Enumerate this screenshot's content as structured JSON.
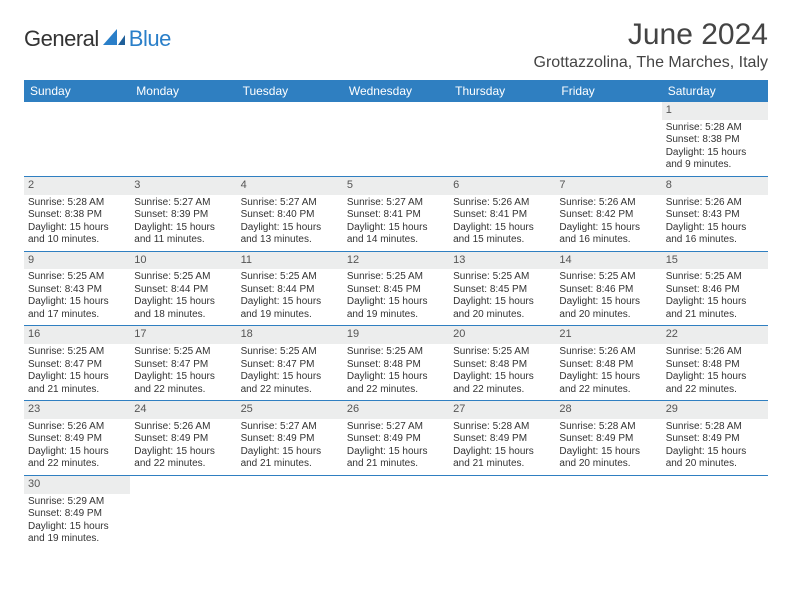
{
  "logo": {
    "part1": "General",
    "part2": "Blue"
  },
  "title": "June 2024",
  "location": "Grottazzolina, The Marches, Italy",
  "colors": {
    "header_bg": "#2f7fc1",
    "header_text": "#ffffff",
    "daynum_bg": "#eceded",
    "border": "#2f7fc1",
    "logo_accent": "#2a7fc9"
  },
  "weekdays": [
    "Sunday",
    "Monday",
    "Tuesday",
    "Wednesday",
    "Thursday",
    "Friday",
    "Saturday"
  ],
  "weeks": [
    [
      null,
      null,
      null,
      null,
      null,
      null,
      {
        "n": "1",
        "sunrise": "Sunrise: 5:28 AM",
        "sunset": "Sunset: 8:38 PM",
        "day1": "Daylight: 15 hours",
        "day2": "and 9 minutes."
      }
    ],
    [
      {
        "n": "2",
        "sunrise": "Sunrise: 5:28 AM",
        "sunset": "Sunset: 8:38 PM",
        "day1": "Daylight: 15 hours",
        "day2": "and 10 minutes."
      },
      {
        "n": "3",
        "sunrise": "Sunrise: 5:27 AM",
        "sunset": "Sunset: 8:39 PM",
        "day1": "Daylight: 15 hours",
        "day2": "and 11 minutes."
      },
      {
        "n": "4",
        "sunrise": "Sunrise: 5:27 AM",
        "sunset": "Sunset: 8:40 PM",
        "day1": "Daylight: 15 hours",
        "day2": "and 13 minutes."
      },
      {
        "n": "5",
        "sunrise": "Sunrise: 5:27 AM",
        "sunset": "Sunset: 8:41 PM",
        "day1": "Daylight: 15 hours",
        "day2": "and 14 minutes."
      },
      {
        "n": "6",
        "sunrise": "Sunrise: 5:26 AM",
        "sunset": "Sunset: 8:41 PM",
        "day1": "Daylight: 15 hours",
        "day2": "and 15 minutes."
      },
      {
        "n": "7",
        "sunrise": "Sunrise: 5:26 AM",
        "sunset": "Sunset: 8:42 PM",
        "day1": "Daylight: 15 hours",
        "day2": "and 16 minutes."
      },
      {
        "n": "8",
        "sunrise": "Sunrise: 5:26 AM",
        "sunset": "Sunset: 8:43 PM",
        "day1": "Daylight: 15 hours",
        "day2": "and 16 minutes."
      }
    ],
    [
      {
        "n": "9",
        "sunrise": "Sunrise: 5:25 AM",
        "sunset": "Sunset: 8:43 PM",
        "day1": "Daylight: 15 hours",
        "day2": "and 17 minutes."
      },
      {
        "n": "10",
        "sunrise": "Sunrise: 5:25 AM",
        "sunset": "Sunset: 8:44 PM",
        "day1": "Daylight: 15 hours",
        "day2": "and 18 minutes."
      },
      {
        "n": "11",
        "sunrise": "Sunrise: 5:25 AM",
        "sunset": "Sunset: 8:44 PM",
        "day1": "Daylight: 15 hours",
        "day2": "and 19 minutes."
      },
      {
        "n": "12",
        "sunrise": "Sunrise: 5:25 AM",
        "sunset": "Sunset: 8:45 PM",
        "day1": "Daylight: 15 hours",
        "day2": "and 19 minutes."
      },
      {
        "n": "13",
        "sunrise": "Sunrise: 5:25 AM",
        "sunset": "Sunset: 8:45 PM",
        "day1": "Daylight: 15 hours",
        "day2": "and 20 minutes."
      },
      {
        "n": "14",
        "sunrise": "Sunrise: 5:25 AM",
        "sunset": "Sunset: 8:46 PM",
        "day1": "Daylight: 15 hours",
        "day2": "and 20 minutes."
      },
      {
        "n": "15",
        "sunrise": "Sunrise: 5:25 AM",
        "sunset": "Sunset: 8:46 PM",
        "day1": "Daylight: 15 hours",
        "day2": "and 21 minutes."
      }
    ],
    [
      {
        "n": "16",
        "sunrise": "Sunrise: 5:25 AM",
        "sunset": "Sunset: 8:47 PM",
        "day1": "Daylight: 15 hours",
        "day2": "and 21 minutes."
      },
      {
        "n": "17",
        "sunrise": "Sunrise: 5:25 AM",
        "sunset": "Sunset: 8:47 PM",
        "day1": "Daylight: 15 hours",
        "day2": "and 22 minutes."
      },
      {
        "n": "18",
        "sunrise": "Sunrise: 5:25 AM",
        "sunset": "Sunset: 8:47 PM",
        "day1": "Daylight: 15 hours",
        "day2": "and 22 minutes."
      },
      {
        "n": "19",
        "sunrise": "Sunrise: 5:25 AM",
        "sunset": "Sunset: 8:48 PM",
        "day1": "Daylight: 15 hours",
        "day2": "and 22 minutes."
      },
      {
        "n": "20",
        "sunrise": "Sunrise: 5:25 AM",
        "sunset": "Sunset: 8:48 PM",
        "day1": "Daylight: 15 hours",
        "day2": "and 22 minutes."
      },
      {
        "n": "21",
        "sunrise": "Sunrise: 5:26 AM",
        "sunset": "Sunset: 8:48 PM",
        "day1": "Daylight: 15 hours",
        "day2": "and 22 minutes."
      },
      {
        "n": "22",
        "sunrise": "Sunrise: 5:26 AM",
        "sunset": "Sunset: 8:48 PM",
        "day1": "Daylight: 15 hours",
        "day2": "and 22 minutes."
      }
    ],
    [
      {
        "n": "23",
        "sunrise": "Sunrise: 5:26 AM",
        "sunset": "Sunset: 8:49 PM",
        "day1": "Daylight: 15 hours",
        "day2": "and 22 minutes."
      },
      {
        "n": "24",
        "sunrise": "Sunrise: 5:26 AM",
        "sunset": "Sunset: 8:49 PM",
        "day1": "Daylight: 15 hours",
        "day2": "and 22 minutes."
      },
      {
        "n": "25",
        "sunrise": "Sunrise: 5:27 AM",
        "sunset": "Sunset: 8:49 PM",
        "day1": "Daylight: 15 hours",
        "day2": "and 21 minutes."
      },
      {
        "n": "26",
        "sunrise": "Sunrise: 5:27 AM",
        "sunset": "Sunset: 8:49 PM",
        "day1": "Daylight: 15 hours",
        "day2": "and 21 minutes."
      },
      {
        "n": "27",
        "sunrise": "Sunrise: 5:28 AM",
        "sunset": "Sunset: 8:49 PM",
        "day1": "Daylight: 15 hours",
        "day2": "and 21 minutes."
      },
      {
        "n": "28",
        "sunrise": "Sunrise: 5:28 AM",
        "sunset": "Sunset: 8:49 PM",
        "day1": "Daylight: 15 hours",
        "day2": "and 20 minutes."
      },
      {
        "n": "29",
        "sunrise": "Sunrise: 5:28 AM",
        "sunset": "Sunset: 8:49 PM",
        "day1": "Daylight: 15 hours",
        "day2": "and 20 minutes."
      }
    ],
    [
      {
        "n": "30",
        "sunrise": "Sunrise: 5:29 AM",
        "sunset": "Sunset: 8:49 PM",
        "day1": "Daylight: 15 hours",
        "day2": "and 19 minutes."
      },
      null,
      null,
      null,
      null,
      null,
      null
    ]
  ]
}
